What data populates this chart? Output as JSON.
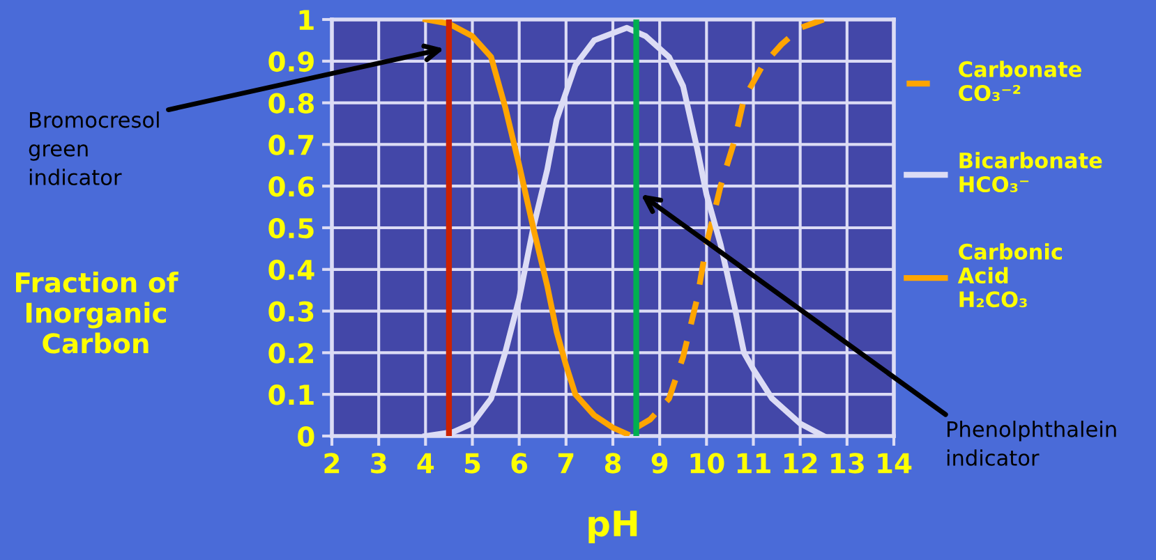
{
  "chart_data": {
    "type": "line",
    "xlabel": "pH",
    "ylabel": "Fraction of\nInorganic\nCarbon",
    "xlim": [
      2,
      14
    ],
    "ylim": [
      0,
      1
    ],
    "xticks": [
      2,
      3,
      4,
      5,
      6,
      7,
      8,
      9,
      10,
      11,
      12,
      13,
      14
    ],
    "yticks": [
      0,
      0.1,
      0.2,
      0.3,
      0.4,
      0.5,
      0.6,
      0.7,
      0.8,
      0.9,
      1
    ],
    "grid": true,
    "legend": "right",
    "series": [
      {
        "name": "Carbonate\nCO₃⁻²",
        "color": "#ffa500",
        "line_style": "dashed",
        "x": [
          8.5,
          8.8,
          9.2,
          9.5,
          9.8,
          10,
          10.3,
          10.6,
          10.8,
          11.2,
          11.6,
          12,
          12.5
        ],
        "values": [
          0.02,
          0.04,
          0.09,
          0.19,
          0.33,
          0.46,
          0.6,
          0.71,
          0.81,
          0.89,
          0.94,
          0.98,
          1.0
        ]
      },
      {
        "name": "Bicarbonate\nHCO₃⁻",
        "color": "#dcdcf5",
        "line_style": "solid",
        "x": [
          4,
          4.6,
          5,
          5.4,
          5.7,
          6,
          6.3,
          6.6,
          6.8,
          7.2,
          7.6,
          8.3,
          8.7,
          9.2,
          9.5,
          9.8,
          10,
          10.3,
          10.6,
          10.8,
          11,
          11.4,
          12,
          12.5
        ],
        "values": [
          0.0,
          0.01,
          0.03,
          0.09,
          0.2,
          0.33,
          0.5,
          0.64,
          0.76,
          0.89,
          0.95,
          0.98,
          0.96,
          0.91,
          0.84,
          0.69,
          0.58,
          0.46,
          0.31,
          0.2,
          0.16,
          0.09,
          0.03,
          0.0
        ]
      },
      {
        "name": "Carbonic\nAcid\nH₂CO₃",
        "color": "#ffa500",
        "line_style": "solid",
        "x": [
          4,
          4.5,
          5,
          5.4,
          5.7,
          6,
          6.3,
          6.6,
          6.8,
          7,
          7.2,
          7.6,
          8,
          8.3
        ],
        "values": [
          1.0,
          0.99,
          0.96,
          0.91,
          0.79,
          0.65,
          0.5,
          0.36,
          0.25,
          0.17,
          0.1,
          0.05,
          0.02,
          0.005
        ]
      }
    ],
    "ref_lines": [
      {
        "axis": "x",
        "value": 4.5,
        "color": "#cc2200"
      },
      {
        "axis": "x",
        "value": 8.5,
        "color": "#00b050"
      }
    ],
    "annotations": [
      {
        "text": "Bromocresol\ngreen\nindicator",
        "x": 4.4,
        "y": 0.93
      },
      {
        "text": "Phenolphthalein\nindicator",
        "x": 8.6,
        "y": 0.58
      }
    ]
  }
}
